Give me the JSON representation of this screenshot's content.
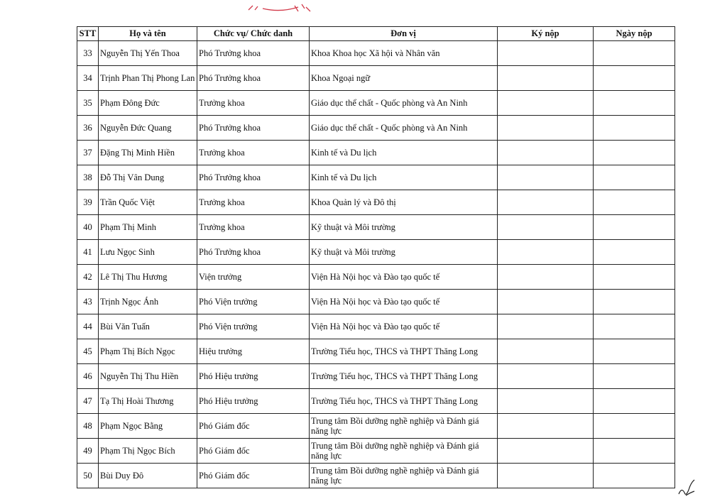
{
  "header": {
    "stt": "STT",
    "name": "Họ và tên",
    "position": "Chức vụ/ Chức danh",
    "unit": "Đơn vị",
    "signed": "Ký nộp",
    "date": "Ngày nộp"
  },
  "rows": [
    {
      "stt": "33",
      "name": "Nguyễn Thị Yến Thoa",
      "position": "Phó Trưởng khoa",
      "unit": "Khoa Khoa học Xã hội và Nhân văn"
    },
    {
      "stt": "34",
      "name": "Trịnh Phan Thị Phong Lan",
      "position": "Phó Trưởng khoa",
      "unit": "Khoa Ngoại ngữ"
    },
    {
      "stt": "35",
      "name": "Phạm Đông Đức",
      "position": "Trưởng khoa",
      "unit": "Giáo dục thể chất - Quốc phòng và An Ninh"
    },
    {
      "stt": "36",
      "name": "Nguyễn Đức Quang",
      "position": "Phó Trưởng khoa",
      "unit": "Giáo dục thể chất - Quốc phòng và An Ninh"
    },
    {
      "stt": "37",
      "name": "Đặng Thị Minh Hiền",
      "position": "Trưởng khoa",
      "unit": "Kinh tế và Du lịch"
    },
    {
      "stt": "38",
      "name": "Đỗ Thị Vân Dung",
      "position": "Phó Trưởng khoa",
      "unit": "Kinh tế và Du lịch"
    },
    {
      "stt": "39",
      "name": "Trần Quốc Việt",
      "position": "Trưởng khoa",
      "unit": "Khoa Quản lý và Đô thị"
    },
    {
      "stt": "40",
      "name": "Phạm Thị Minh",
      "position": "Trưởng khoa",
      "unit": "Kỹ thuật và Môi trường"
    },
    {
      "stt": "41",
      "name": "Lưu Ngọc Sinh",
      "position": "Phó Trưởng khoa",
      "unit": "Kỹ thuật và Môi trường"
    },
    {
      "stt": "42",
      "name": "Lê Thị Thu Hương",
      "position": "Viện trưởng",
      "unit": "Viện Hà Nội học và Đào tạo quốc tế"
    },
    {
      "stt": "43",
      "name": "Trịnh Ngọc Ánh",
      "position": "Phó Viện trưởng",
      "unit": "Viện Hà Nội học và Đào tạo quốc tế"
    },
    {
      "stt": "44",
      "name": "Bùi Văn Tuấn",
      "position": "Phó Viện trưởng",
      "unit": "Viện Hà Nội học và Đào tạo quốc tế"
    },
    {
      "stt": "45",
      "name": "Phạm Thị Bích Ngọc",
      "position": "Hiệu trưởng",
      "unit": "Trường Tiểu học, THCS và THPT Thăng Long"
    },
    {
      "stt": "46",
      "name": "Nguyễn Thị Thu Hiền",
      "position": "Phó Hiệu trưởng",
      "unit": "Trường Tiểu học, THCS và THPT Thăng Long"
    },
    {
      "stt": "47",
      "name": "Tạ Thị Hoài Thương",
      "position": "Phó Hiệu trưởng",
      "unit": "Trường Tiểu học, THCS và THPT Thăng Long"
    },
    {
      "stt": "48",
      "name": "Phạm Ngọc Bằng",
      "position": "Phó Giám đốc",
      "unit": "Trung tâm Bồi dưỡng nghề nghiệp và Đánh giá năng lực"
    },
    {
      "stt": "49",
      "name": "Phạm Thị Ngọc Bích",
      "position": "Phó Giám đốc",
      "unit": "Trung tâm Bồi dưỡng nghề nghiệp và Đánh giá năng lực"
    },
    {
      "stt": "50",
      "name": "Bùi Duy Đô",
      "position": "Phó Giám đốc",
      "unit": "Trung tâm Bồi dưỡng nghề nghiệp và Đánh giá năng lực"
    }
  ],
  "colors": {
    "ink": "#111111",
    "stamp_red": "#d23a4a"
  }
}
